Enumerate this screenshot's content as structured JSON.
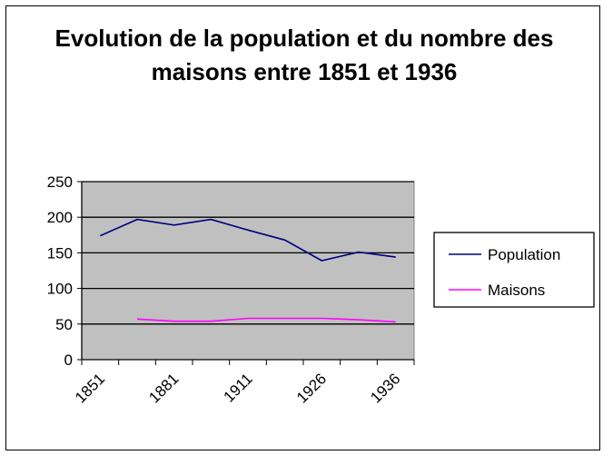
{
  "chart_data": {
    "type": "line",
    "title": "Evolution de la population et du nombre des maisons entre 1851 et 1936",
    "x_tick_labels": [
      "1851",
      "1881",
      "1911",
      "1926",
      "1936"
    ],
    "y_tick_labels": [
      "0",
      "50",
      "100",
      "150",
      "200",
      "250"
    ],
    "ylim": [
      0,
      250
    ],
    "grid": true,
    "legend_position": "right",
    "categories_count": 9,
    "series": [
      {
        "name": "Population",
        "color": "#000080",
        "values": [
          174,
          197,
          189,
          197,
          182,
          168,
          139,
          151,
          144
        ]
      },
      {
        "name": "Maisons",
        "color": "#ff00ff",
        "values": [
          null,
          57,
          54,
          54,
          58,
          58,
          58,
          56,
          53
        ]
      }
    ]
  }
}
